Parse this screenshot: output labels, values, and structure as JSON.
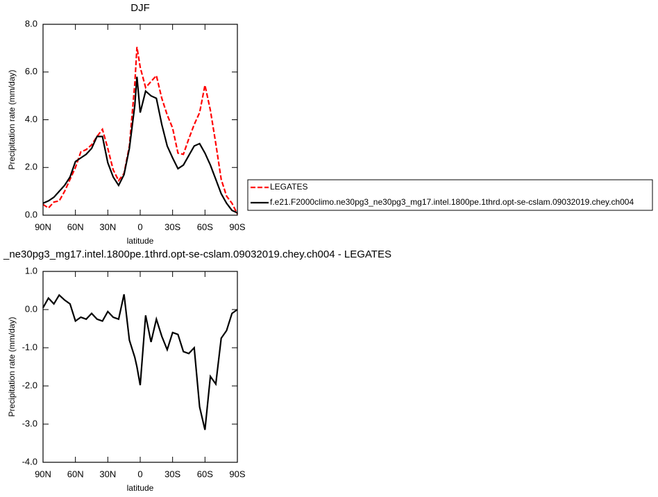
{
  "chart_data": [
    {
      "type": "line",
      "title": "DJF",
      "xlabel": "latitude",
      "ylabel": "Precipitation rate (mm/day)",
      "x": [
        90,
        85,
        80,
        75,
        70,
        65,
        60,
        55,
        50,
        45,
        40,
        35,
        30,
        25,
        20,
        15,
        10,
        5,
        3,
        0,
        -5,
        -10,
        -15,
        -20,
        -25,
        -30,
        -35,
        -40,
        -45,
        -50,
        -55,
        -60,
        -65,
        -70,
        -75,
        -80,
        -85,
        -90
      ],
      "series": [
        {
          "name": "LEGATES",
          "color": "#ff0000",
          "linestyle": "dashed",
          "values": [
            0.45,
            0.3,
            0.55,
            0.6,
            1.0,
            1.5,
            2.0,
            2.65,
            2.75,
            2.95,
            3.3,
            3.6,
            2.8,
            1.9,
            1.45,
            1.75,
            2.9,
            5.5,
            7.05,
            6.2,
            5.35,
            5.6,
            5.85,
            4.9,
            4.2,
            3.65,
            2.6,
            2.55,
            3.2,
            3.8,
            4.3,
            5.45,
            4.4,
            3.0,
            1.5,
            0.8,
            0.5,
            0.05
          ]
        },
        {
          "name": "f.e21.F2000climo.ne30pg3_ne30pg3_mg17.intel.1800pe.1thrd.opt-se-cslam.09032019.chey.ch004",
          "color": "#000000",
          "linestyle": "solid",
          "values": [
            0.5,
            0.6,
            0.75,
            1.0,
            1.25,
            1.6,
            2.25,
            2.4,
            2.55,
            2.8,
            3.3,
            3.3,
            2.2,
            1.6,
            1.25,
            1.7,
            2.8,
            4.6,
            5.8,
            4.3,
            5.2,
            5.0,
            4.9,
            3.8,
            2.9,
            2.4,
            1.95,
            2.1,
            2.5,
            2.9,
            3.0,
            2.6,
            2.1,
            1.5,
            0.9,
            0.5,
            0.2,
            0.1
          ]
        }
      ],
      "xlim": [
        90,
        -90
      ],
      "xticks": [
        {
          "value": 90,
          "label": "90N"
        },
        {
          "value": 60,
          "label": "60N"
        },
        {
          "value": 30,
          "label": "30N"
        },
        0,
        {
          "value": -30,
          "label": "30S"
        },
        {
          "value": -60,
          "label": "60S"
        },
        {
          "value": -90,
          "label": "90S"
        }
      ],
      "ylim": [
        0,
        8
      ],
      "yticks": [
        {
          "value": 0,
          "label": "0.0"
        },
        {
          "value": 2,
          "label": "2.0"
        },
        {
          "value": 4,
          "label": "4.0"
        },
        {
          "value": 6,
          "label": "6.0"
        },
        {
          "value": 8,
          "label": "8.0"
        }
      ],
      "legend": "outside-right"
    },
    {
      "type": "line",
      "title": "_ne30pg3_mg17.intel.1800pe.1thrd.opt-se-cslam.09032019.chey.ch004 - LEGATES",
      "xlabel": "latitude",
      "ylabel": "Precipitation rate (mm/day)",
      "x": [
        90,
        85,
        80,
        75,
        70,
        65,
        60,
        55,
        50,
        45,
        40,
        35,
        30,
        25,
        20,
        15,
        10,
        5,
        3,
        0,
        -5,
        -10,
        -15,
        -20,
        -25,
        -30,
        -35,
        -40,
        -45,
        -50,
        -55,
        -60,
        -65,
        -70,
        -75,
        -80,
        -85,
        -90
      ],
      "color": "#000000",
      "values": [
        0.05,
        0.3,
        0.15,
        0.38,
        0.25,
        0.15,
        -0.3,
        -0.2,
        -0.25,
        -0.1,
        -0.25,
        -0.3,
        -0.05,
        -0.2,
        -0.25,
        0.4,
        -0.8,
        -1.25,
        -1.5,
        -1.98,
        -0.15,
        -0.85,
        -0.25,
        -0.7,
        -1.05,
        -0.6,
        -0.65,
        -1.1,
        -1.15,
        -1.0,
        -2.55,
        -3.15,
        -1.75,
        -1.95,
        -0.75,
        -0.55,
        -0.1,
        0.0
      ],
      "xlim": [
        90,
        -90
      ],
      "xticks": [
        {
          "value": 90,
          "label": "90N"
        },
        {
          "value": 60,
          "label": "60N"
        },
        {
          "value": 30,
          "label": "30N"
        },
        0,
        {
          "value": -30,
          "label": "30S"
        },
        {
          "value": -60,
          "label": "60S"
        },
        {
          "value": -90,
          "label": "90S"
        }
      ],
      "ylim": [
        -4,
        1
      ],
      "yticks": [
        {
          "value": -4,
          "label": "-4.0"
        },
        {
          "value": -3,
          "label": "-3.0"
        },
        {
          "value": -2,
          "label": "-2.0"
        },
        {
          "value": -1,
          "label": "-1.0"
        },
        {
          "value": 0,
          "label": "0.0"
        },
        {
          "value": 1,
          "label": "1.0"
        }
      ]
    }
  ]
}
